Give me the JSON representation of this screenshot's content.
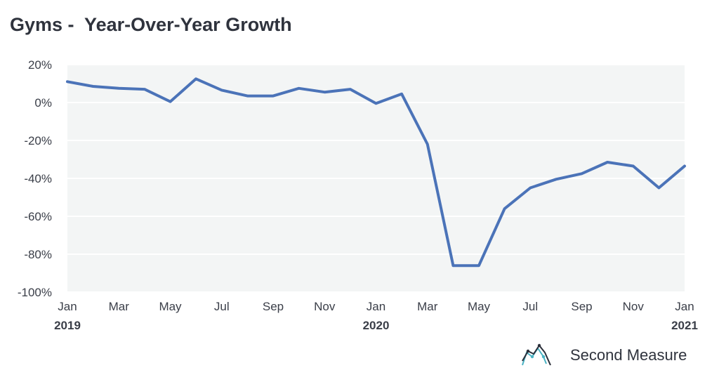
{
  "title": "Gyms -  Year-Over-Year Growth",
  "brand": {
    "name": "Second Measure",
    "logo_icon": "second-measure-logo-icon",
    "logo_colors": [
      "#2b2f3a",
      "#4bb3c4"
    ]
  },
  "colors": {
    "line": "#4b73b8",
    "plot_bg": "#f3f5f5",
    "grid": "#ffffff"
  },
  "chart_data": {
    "type": "line",
    "title": "Gyms -  Year-Over-Year Growth",
    "xlabel": "",
    "ylabel": "",
    "ylim": [
      -100,
      20
    ],
    "y_ticks": [
      20,
      0,
      -20,
      -40,
      -60,
      -80,
      -100
    ],
    "y_tick_labels": [
      "20%",
      "0%",
      "-20%",
      "-40%",
      "-60%",
      "-80%",
      "-100%"
    ],
    "x_tick_labels": [
      {
        "label": "Jan",
        "month": "2019-01",
        "year": "2019"
      },
      {
        "label": "Mar",
        "month": "2019-03"
      },
      {
        "label": "May",
        "month": "2019-05"
      },
      {
        "label": "Jul",
        "month": "2019-07"
      },
      {
        "label": "Sep",
        "month": "2019-09"
      },
      {
        "label": "Nov",
        "month": "2019-11"
      },
      {
        "label": "Jan",
        "month": "2020-01",
        "year": "2020"
      },
      {
        "label": "Mar",
        "month": "2020-03"
      },
      {
        "label": "May",
        "month": "2020-05"
      },
      {
        "label": "Jul",
        "month": "2020-07"
      },
      {
        "label": "Sep",
        "month": "2020-09"
      },
      {
        "label": "Nov",
        "month": "2020-11"
      },
      {
        "label": "Jan",
        "month": "2021-01",
        "year": "2021"
      }
    ],
    "grid": true,
    "series": [
      {
        "x": [
          "2019-01",
          "2019-02",
          "2019-03",
          "2019-04",
          "2019-05",
          "2019-06",
          "2019-07",
          "2019-08",
          "2019-09",
          "2019-10",
          "2019-11",
          "2019-12",
          "2020-01",
          "2020-02",
          "2020-03",
          "2020-04",
          "2020-05",
          "2020-06",
          "2020-07",
          "2020-08",
          "2020-09",
          "2020-10",
          "2020-11",
          "2020-12",
          "2021-01"
        ],
        "values": [
          11,
          8.5,
          7.5,
          7,
          0.5,
          12.5,
          6.5,
          3.5,
          3.5,
          7.5,
          5.5,
          7,
          -0.5,
          4.5,
          -22,
          -86,
          -86,
          -56,
          -45,
          -40.5,
          -37.5,
          -31.5,
          -33.5,
          -45,
          -33.5
        ]
      }
    ]
  }
}
